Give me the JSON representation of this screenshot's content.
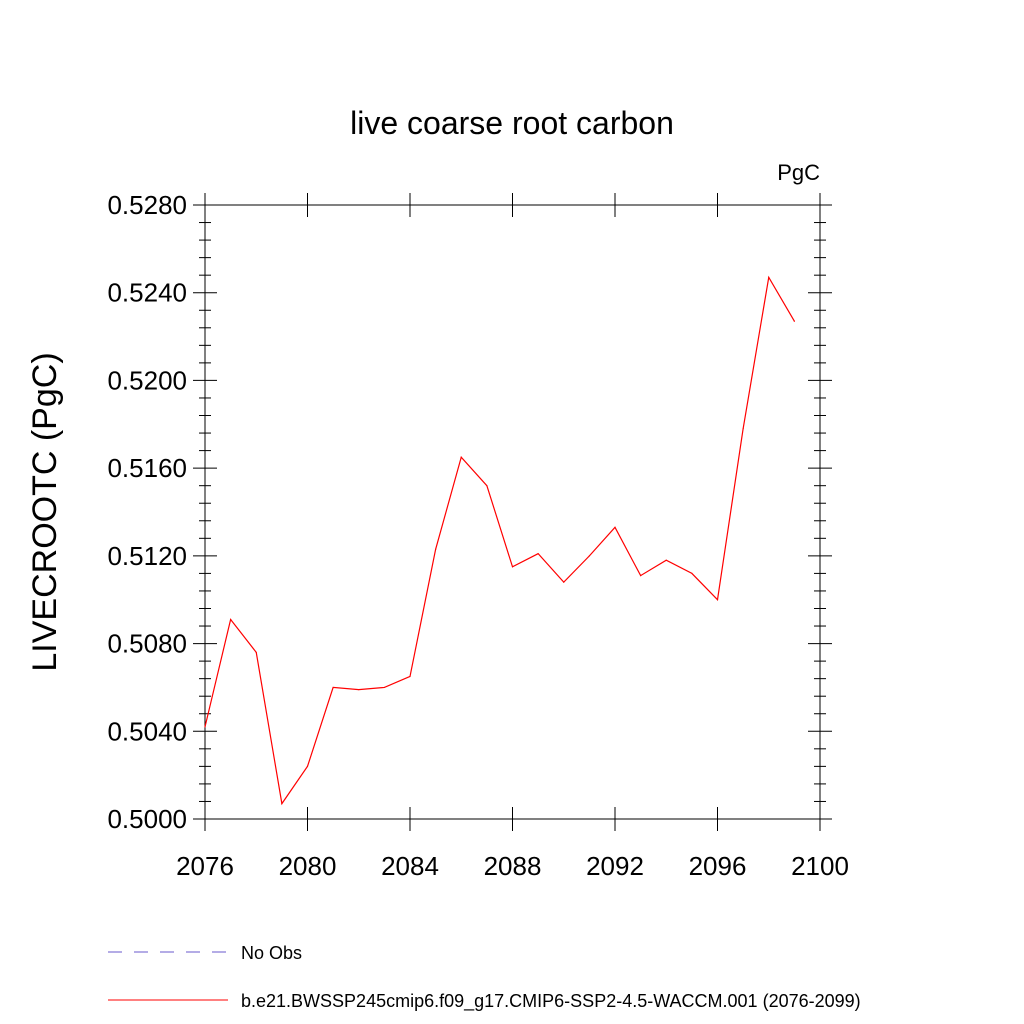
{
  "chart_data": {
    "type": "line",
    "title": "live coarse root carbon",
    "units": "PgC",
    "ylabel": "LIVECROOTC  (PgC)",
    "xlabel": "",
    "xlim": [
      2076,
      2100
    ],
    "ylim": [
      0.5,
      0.528
    ],
    "x_ticks": [
      2076,
      2080,
      2084,
      2088,
      2092,
      2096,
      2100
    ],
    "x_tick_labels": [
      "2076",
      "2080",
      "2084",
      "2088",
      "2092",
      "2096",
      "2100"
    ],
    "y_ticks": [
      0.5,
      0.504,
      0.508,
      0.512,
      0.516,
      0.52,
      0.524,
      0.528
    ],
    "y_tick_labels": [
      "0.5000",
      "0.5040",
      "0.5080",
      "0.5120",
      "0.5160",
      "0.5200",
      "0.5240",
      "0.5280"
    ],
    "grid": false,
    "legend_position": "bottom",
    "series": [
      {
        "name": "b.e21.BWSSP245cmip6.f09_g17.CMIP6-SSP2-4.5-WACCM.001 (2076-2099)",
        "color": "#ff0000",
        "style": "solid",
        "x": [
          2076,
          2077,
          2078,
          2079,
          2080,
          2081,
          2082,
          2083,
          2084,
          2085,
          2086,
          2087,
          2088,
          2089,
          2090,
          2091,
          2092,
          2093,
          2094,
          2095,
          2096,
          2097,
          2098,
          2099
        ],
        "y": [
          0.5042,
          0.5091,
          0.5076,
          0.5007,
          0.5024,
          0.506,
          0.5059,
          0.506,
          0.5065,
          0.5123,
          0.5165,
          0.5152,
          0.5115,
          0.5121,
          0.5108,
          0.512,
          0.5133,
          0.5111,
          0.5118,
          0.5112,
          0.51,
          0.5178,
          0.5247,
          0.5227
        ]
      }
    ],
    "legend": [
      {
        "label": "No Obs",
        "color": "#6a5acd",
        "style": "dashed"
      },
      {
        "label": "b.e21.BWSSP245cmip6.f09_g17.CMIP6-SSP2-4.5-WACCM.001 (2076-2099)",
        "color": "#ff0000",
        "style": "solid"
      }
    ]
  }
}
